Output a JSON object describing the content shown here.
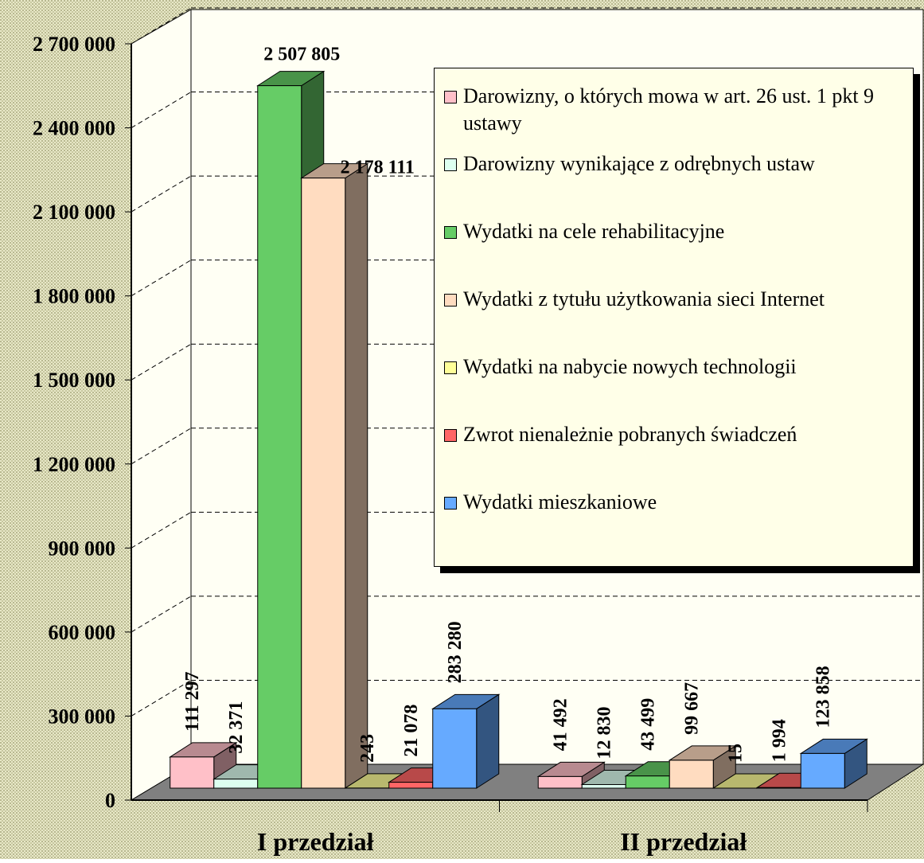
{
  "chart_data": {
    "type": "bar3d",
    "categories": [
      "I przedział",
      "II przedział"
    ],
    "ylim": [
      0,
      2700000
    ],
    "yticks": [
      {
        "value": 0,
        "label": "0"
      },
      {
        "value": 300000,
        "label": "300 000"
      },
      {
        "value": 600000,
        "label": "600 000"
      },
      {
        "value": 900000,
        "label": "900 000"
      },
      {
        "value": 1200000,
        "label": "1 200 000"
      },
      {
        "value": 1500000,
        "label": "1 500 000"
      },
      {
        "value": 1800000,
        "label": "1 800 000"
      },
      {
        "value": 2100000,
        "label": "2 100 000"
      },
      {
        "value": 2400000,
        "label": "2 400 000"
      },
      {
        "value": 2700000,
        "label": "2 700 000"
      }
    ],
    "grid": true,
    "legend": "right",
    "series": [
      {
        "name": "Darowizny, o których mowa w art. 26 ust. 1 pkt 9 ustawy",
        "color": "#ffc0c8",
        "values": [
          111297,
          41492
        ],
        "value_labels": [
          "111 297",
          "41 492"
        ]
      },
      {
        "name": "Darowizny wynikające z odrębnych ustaw",
        "color": "#ddfff0",
        "values": [
          32371,
          12830
        ],
        "value_labels": [
          "32 371",
          "12 830"
        ]
      },
      {
        "name": "Wydatki na cele rehabilitacyjne",
        "color": "#66cc66",
        "values": [
          2507805,
          43499
        ],
        "value_labels": [
          "2 507 805",
          "43 499"
        ]
      },
      {
        "name": "Wydatki z tytułu użytkowania sieci Internet",
        "color": "#ffdcc0",
        "values": [
          2178111,
          99667
        ],
        "value_labels": [
          "2 178 111",
          "99 667"
        ]
      },
      {
        "name": "Wydatki na nabycie nowych technologii",
        "color": "#ffff99",
        "values": [
          243,
          15
        ],
        "value_labels": [
          "243",
          "15"
        ]
      },
      {
        "name": "Zwrot nienależnie pobranych świadczeń",
        "color": "#ff6666",
        "values": [
          21078,
          1994
        ],
        "value_labels": [
          "21 078",
          "1 994"
        ]
      },
      {
        "name": "Wydatki mieszkaniowe",
        "color": "#66aaff",
        "values": [
          283280,
          123858
        ],
        "value_labels": [
          "283 280",
          "123 858"
        ]
      }
    ]
  }
}
